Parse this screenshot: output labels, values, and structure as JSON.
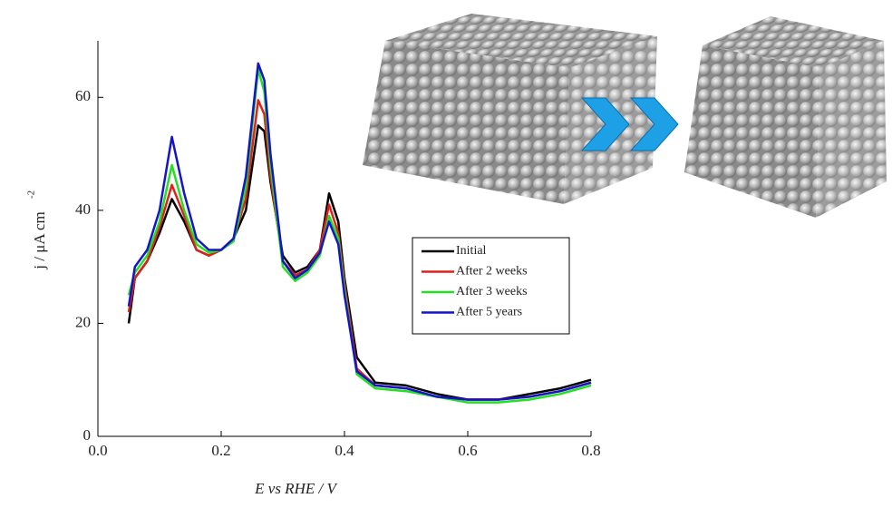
{
  "chart_data": {
    "type": "line",
    "xlabel": "E vs RHE / V",
    "ylabel": "j / μA cm",
    "ylabel_superscript": "-2",
    "x": [
      0.05,
      0.06,
      0.08,
      0.1,
      0.12,
      0.14,
      0.16,
      0.18,
      0.2,
      0.22,
      0.24,
      0.26,
      0.27,
      0.28,
      0.3,
      0.32,
      0.34,
      0.36,
      0.375,
      0.39,
      0.4,
      0.42,
      0.45,
      0.5,
      0.55,
      0.6,
      0.65,
      0.7,
      0.75,
      0.8
    ],
    "series": [
      {
        "name": "Initial",
        "color": "#000000",
        "values": [
          20,
          28,
          31,
          36,
          42,
          38,
          33,
          32,
          33,
          35,
          40,
          55,
          54,
          45,
          32,
          29,
          30,
          33,
          43,
          38,
          28,
          14,
          9.5,
          9,
          7.5,
          6.5,
          6.5,
          7.5,
          8.5,
          10
        ]
      },
      {
        "name": "After 2 weeks",
        "color": "#e0201b",
        "values": [
          22,
          28,
          31,
          37,
          44.5,
          39,
          33,
          32,
          33,
          35,
          42,
          59.5,
          57,
          46,
          31,
          28.5,
          29.5,
          33,
          41,
          36,
          27,
          12,
          9,
          8.5,
          7,
          6.5,
          6.5,
          7,
          8,
          9.5
        ]
      },
      {
        "name": "After 3 weeks",
        "color": "#22e022",
        "values": [
          25,
          29,
          32,
          38,
          48,
          40,
          34,
          32.5,
          33,
          34.5,
          44,
          65,
          61,
          48,
          30,
          27.5,
          29,
          32,
          39,
          35,
          26,
          11,
          8.5,
          8,
          7,
          6,
          6,
          6.5,
          7.5,
          9
        ]
      },
      {
        "name": "After 5 years",
        "color": "#1414c8",
        "values": [
          23,
          30,
          33,
          40,
          53,
          43,
          35,
          33,
          33,
          35,
          46,
          66,
          63,
          50,
          31,
          28,
          29.5,
          32.5,
          38,
          34,
          25,
          11.5,
          9,
          8.5,
          7,
          6.5,
          6.5,
          7,
          8,
          9.5
        ]
      }
    ],
    "xlim": [
      0,
      0.8
    ],
    "xticks": [
      {
        "value": 0,
        "label": "0.0"
      },
      0.2,
      0.4,
      0.6,
      0.8
    ],
    "ylim": [
      0,
      70
    ],
    "yticks": [
      0,
      20,
      40,
      60
    ],
    "legend": "center"
  }
}
